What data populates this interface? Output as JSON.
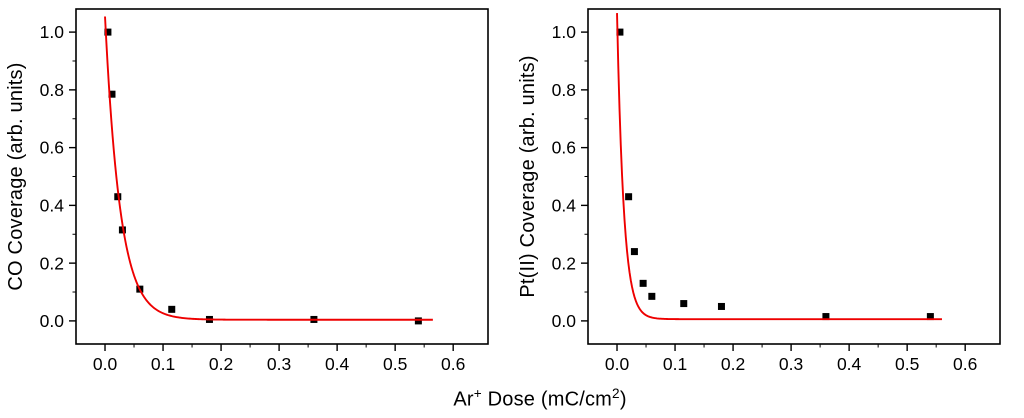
{
  "figure": {
    "xlabel_parts": [
      "Ar",
      "+",
      " Dose (mC/cm",
      "2",
      ")"
    ],
    "accent_color": "#ee0000",
    "marker_color": "#000000"
  },
  "chart_data": [
    {
      "type": "scatter",
      "title": "",
      "ylabel": "CO Coverage (arb. units)",
      "xlabel": "Ar⁺ Dose (mC/cm²)",
      "xlim": [
        -0.05,
        0.66
      ],
      "ylim": [
        -0.08,
        1.08
      ],
      "x_ticks": [
        0.0,
        0.1,
        0.2,
        0.3,
        0.4,
        0.5,
        0.6
      ],
      "x_tick_labels": [
        "0.0",
        "0.1",
        "0.2",
        "0.3",
        "0.4",
        "0.5",
        "0.6"
      ],
      "y_ticks": [
        0.0,
        0.2,
        0.4,
        0.6,
        0.8,
        1.0
      ],
      "y_tick_labels": [
        "0.0",
        "0.2",
        "0.4",
        "0.6",
        "0.8",
        "1.0"
      ],
      "x_minor_step": 0.05,
      "y_minor_step": 0.1,
      "grid": false,
      "legend": "none",
      "series": [
        {
          "name": "CO coverage data",
          "kind": "scatter",
          "marker": "square",
          "color": "#000000",
          "points": [
            [
              0.005,
              1.0
            ],
            [
              0.012,
              0.785
            ],
            [
              0.022,
              0.43
            ],
            [
              0.03,
              0.315
            ],
            [
              0.06,
              0.11
            ],
            [
              0.115,
              0.04
            ],
            [
              0.18,
              0.005
            ],
            [
              0.36,
              0.005
            ],
            [
              0.54,
              0.0
            ]
          ]
        },
        {
          "name": "exponential decay fit",
          "kind": "line",
          "color": "#ee0000",
          "fit": {
            "A": 1.05,
            "tau": 0.026,
            "y0": 0.004,
            "x_start": 0.0,
            "x_end": 0.565
          }
        }
      ]
    },
    {
      "type": "scatter",
      "title": "",
      "ylabel": "Pt(II) Coverage (arb. units)",
      "xlabel": "Ar⁺ Dose (mC/cm²)",
      "xlim": [
        -0.05,
        0.66
      ],
      "ylim": [
        -0.08,
        1.08
      ],
      "x_ticks": [
        0.0,
        0.1,
        0.2,
        0.3,
        0.4,
        0.5,
        0.6
      ],
      "x_tick_labels": [
        "0.0",
        "0.1",
        "0.2",
        "0.3",
        "0.4",
        "0.5",
        "0.6"
      ],
      "y_ticks": [
        0.0,
        0.2,
        0.4,
        0.6,
        0.8,
        1.0
      ],
      "y_tick_labels": [
        "0.0",
        "0.2",
        "0.4",
        "0.6",
        "0.8",
        "1.0"
      ],
      "x_minor_step": 0.05,
      "y_minor_step": 0.1,
      "grid": false,
      "legend": "none",
      "series": [
        {
          "name": "Pt(II) coverage data",
          "kind": "scatter",
          "marker": "square",
          "color": "#000000",
          "points": [
            [
              0.005,
              1.0
            ],
            [
              0.02,
              0.43
            ],
            [
              0.03,
              0.24
            ],
            [
              0.045,
              0.13
            ],
            [
              0.06,
              0.085
            ],
            [
              0.115,
              0.06
            ],
            [
              0.18,
              0.05
            ],
            [
              0.36,
              0.015
            ],
            [
              0.54,
              0.015
            ]
          ]
        },
        {
          "name": "exponential decay fit",
          "kind": "line",
          "color": "#ee0000",
          "fit": {
            "A": 1.06,
            "tau": 0.0115,
            "y0": 0.006,
            "x_start": 0.0,
            "x_end": 0.56
          }
        }
      ]
    }
  ]
}
